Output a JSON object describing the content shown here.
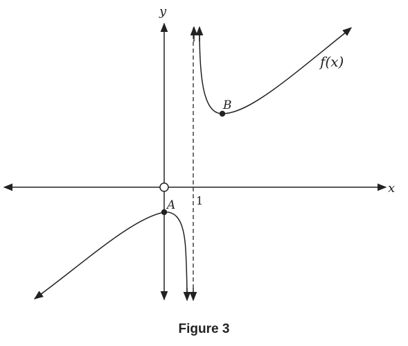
{
  "figure": {
    "caption": "Figure 3",
    "axis_labels": {
      "x": "x",
      "y": "y"
    },
    "asymptote_tick_label": "1",
    "curve_label": "f(x)",
    "points": [
      {
        "name": "A",
        "fill": "filled"
      },
      {
        "name": "B",
        "fill": "filled"
      }
    ],
    "origin_marker": "open-circle",
    "colors": {
      "stroke": "#222222",
      "background": "#ffffff"
    }
  }
}
